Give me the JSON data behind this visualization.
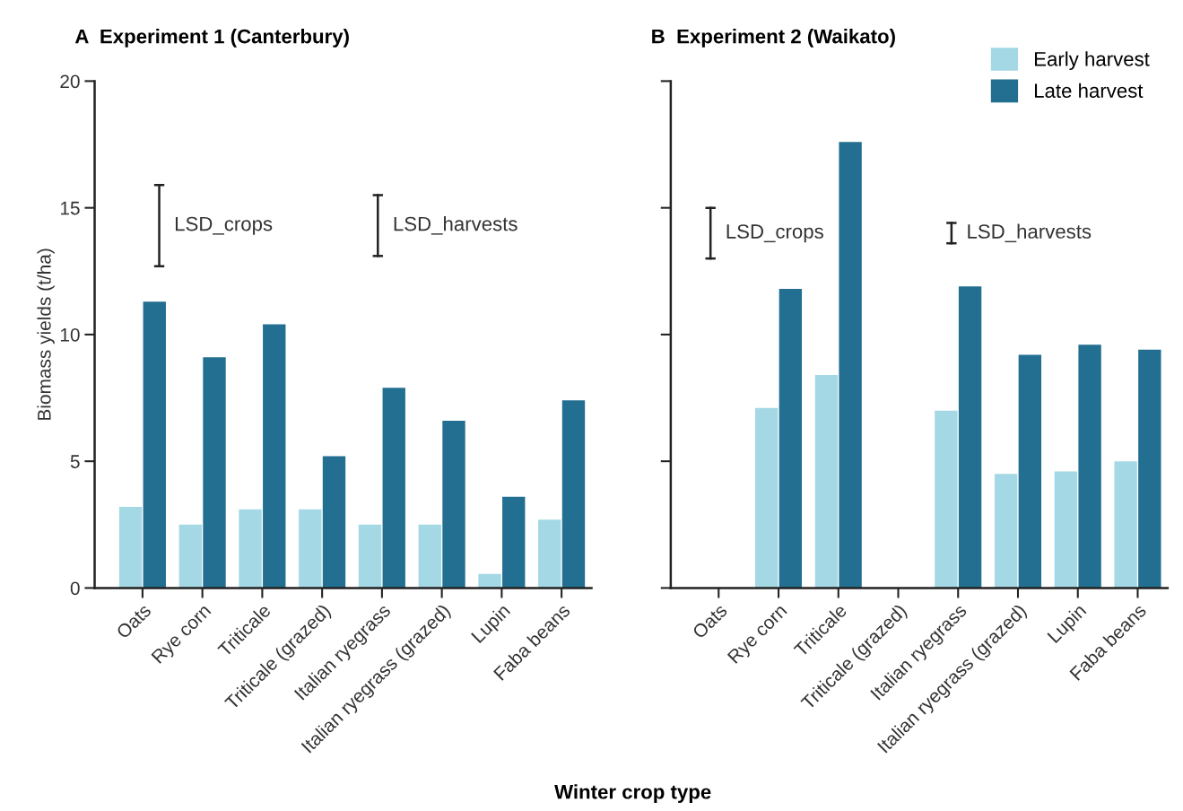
{
  "chart_data": [
    {
      "type": "bar",
      "title": "A  Experiment 1 (Canterbury)",
      "xlabel": "Winter crop type",
      "ylabel": "Biomass yields (t/ha)",
      "categories": [
        "Oats",
        "Rye corn",
        "Triticale",
        "Triticale (grazed)",
        "Italian ryegrass",
        "Italian ryegrass (grazed)",
        "Lupin",
        "Faba beans"
      ],
      "series": [
        {
          "color": "#a3d8e4",
          "values": [
            3.2,
            2.5,
            3.1,
            3.1,
            2.5,
            2.5,
            0.55,
            2.7
          ]
        },
        {
          "color": "#226f91",
          "values": [
            11.3,
            9.1,
            10.4,
            5.2,
            7.9,
            6.6,
            3.6,
            7.4
          ]
        }
      ],
      "ylim": [
        0,
        20
      ],
      "yticks": [
        0,
        5,
        10,
        15,
        20
      ],
      "grid": false,
      "annotations": [
        "LSD_crops",
        "LSD_harvests"
      ]
    },
    {
      "type": "bar",
      "title": "B  Experiment 2 (Waikato)",
      "categories": [
        "Oats",
        "Rye corn",
        "Triticale",
        "Triticale (grazed)",
        "Italian ryegrass",
        "Italian ryegrass (grazed)",
        "Lupin",
        "Faba beans"
      ],
      "series": [
        {
          "name": "Early harvest",
          "color": "#a3d8e4",
          "values": [
            null,
            7.1,
            8.4,
            null,
            7.0,
            4.5,
            4.6,
            5.0
          ]
        },
        {
          "name": "Late harvest",
          "color": "#226f91",
          "values": [
            null,
            11.8,
            17.6,
            null,
            11.9,
            9.2,
            9.6,
            9.4
          ]
        }
      ],
      "ylim": [
        0,
        20
      ],
      "yticks": [
        0,
        5,
        10,
        15,
        20
      ],
      "grid": false,
      "legend": "top right",
      "tick_labels": "x",
      "annotations": [
        "LSD_crops",
        "LSD_harvests"
      ]
    }
  ]
}
